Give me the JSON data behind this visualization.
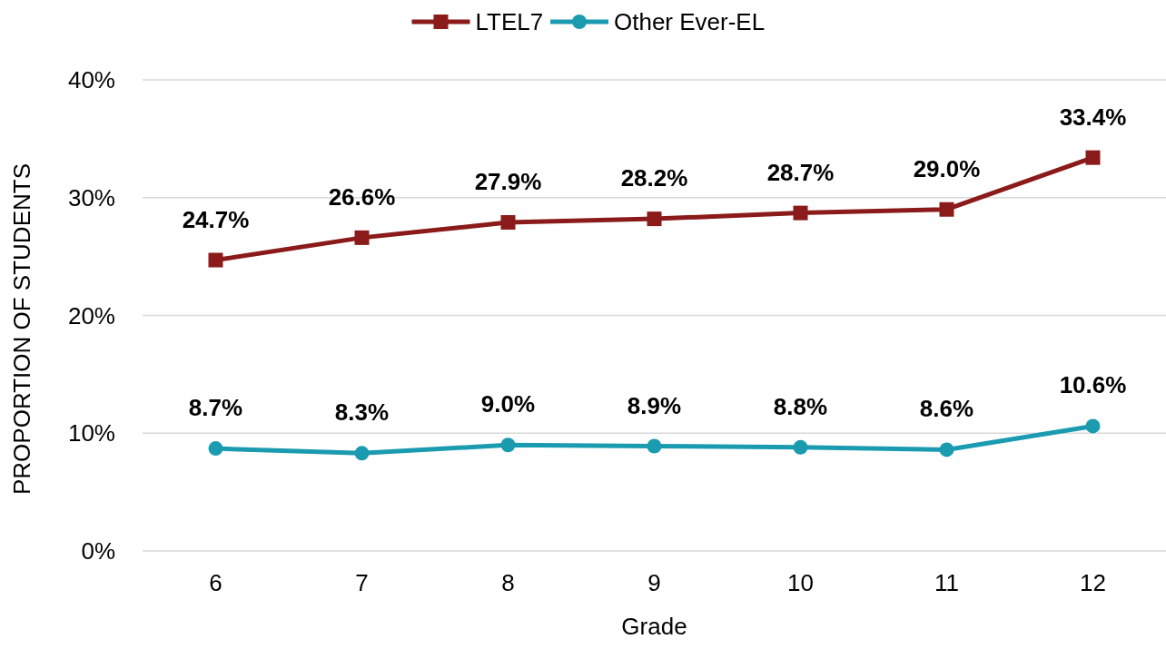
{
  "chart_data": {
    "type": "line",
    "xlabel": "Grade",
    "ylabel": "PROPORTION OF STUDENTS",
    "categories": [
      "6",
      "7",
      "8",
      "9",
      "10",
      "11",
      "12"
    ],
    "series": [
      {
        "name": "LTEL7",
        "color": "#8b1a1a",
        "marker": "square",
        "values": [
          24.7,
          26.6,
          27.9,
          28.2,
          28.7,
          29.0,
          33.4
        ],
        "value_labels": [
          "24.7%",
          "26.6%",
          "27.9%",
          "28.2%",
          "28.7%",
          "29.0%",
          "33.4%"
        ]
      },
      {
        "name": "Other Ever-EL",
        "color": "#1a9bb0",
        "marker": "circle",
        "values": [
          8.7,
          8.3,
          9.0,
          8.9,
          8.8,
          8.6,
          10.6
        ],
        "value_labels": [
          "8.7%",
          "8.3%",
          "9.0%",
          "8.9%",
          "8.8%",
          "8.6%",
          "10.6%"
        ]
      }
    ],
    "ylim": [
      0,
      40
    ],
    "yticks": [
      {
        "value": 0,
        "label": "0%"
      },
      {
        "value": 10,
        "label": "10%"
      },
      {
        "value": 20,
        "label": "20%"
      },
      {
        "value": 30,
        "label": "30%"
      },
      {
        "value": 40,
        "label": "40%"
      }
    ],
    "grid": "y",
    "legend": "top",
    "line_style": "solid"
  }
}
